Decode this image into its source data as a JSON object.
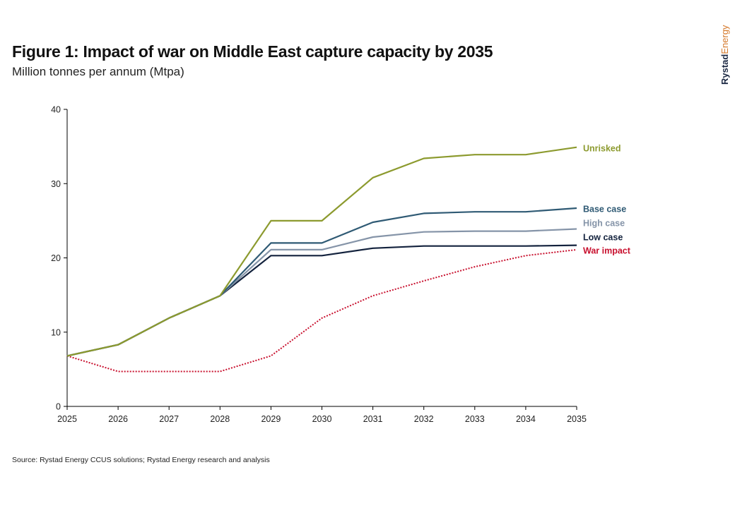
{
  "header": {
    "title": "Figure 1: Impact of war on Middle East capture capacity by 2035",
    "subtitle": "Million tonnes per annum (Mtpa)"
  },
  "brand": {
    "part1": "Rystad",
    "part2": "Energy"
  },
  "footer": {
    "source": "Source: Rystad Energy CCUS solutions; Rystad Energy research and analysis"
  },
  "chart_data": {
    "type": "line",
    "title": "Figure 1: Impact of war on Middle East capture capacity by 2035",
    "subtitle": "Million tonnes per annum (Mtpa)",
    "xlabel": "",
    "ylabel": "Million tonnes per annum (Mtpa)",
    "x": [
      "2025",
      "2026",
      "2027",
      "2028",
      "2029",
      "2030",
      "2031",
      "2032",
      "2033",
      "2034",
      "2035"
    ],
    "ylim": [
      0,
      40
    ],
    "yticks": [
      "0",
      "10",
      "20",
      "30",
      "40"
    ],
    "grid": false,
    "legend": "right (labels at line ends)",
    "series": [
      {
        "name": "Unrisked",
        "color": "#8c9a2e",
        "style": "solid",
        "values": [
          6.8,
          8.3,
          11.9,
          14.9,
          25.0,
          25.0,
          30.8,
          33.4,
          33.9,
          33.9,
          34.9
        ]
      },
      {
        "name": "Base case",
        "color": "#2f5a74",
        "style": "solid",
        "values": [
          6.8,
          8.3,
          11.9,
          14.9,
          22.0,
          22.0,
          24.8,
          26.0,
          26.2,
          26.2,
          26.7
        ]
      },
      {
        "name": "High case",
        "color": "#8594a8",
        "style": "solid",
        "values": [
          6.8,
          8.3,
          11.9,
          14.9,
          21.1,
          21.1,
          22.8,
          23.5,
          23.6,
          23.6,
          23.9
        ]
      },
      {
        "name": "Low case",
        "color": "#13223d",
        "style": "solid",
        "values": [
          6.8,
          8.3,
          11.9,
          14.9,
          20.3,
          20.3,
          21.3,
          21.6,
          21.6,
          21.6,
          21.7
        ]
      },
      {
        "name": "War impact",
        "color": "#c8102e",
        "style": "dotted",
        "values": [
          6.8,
          4.7,
          4.7,
          4.7,
          6.8,
          11.9,
          14.9,
          16.9,
          18.8,
          20.3,
          21.1
        ]
      }
    ]
  }
}
